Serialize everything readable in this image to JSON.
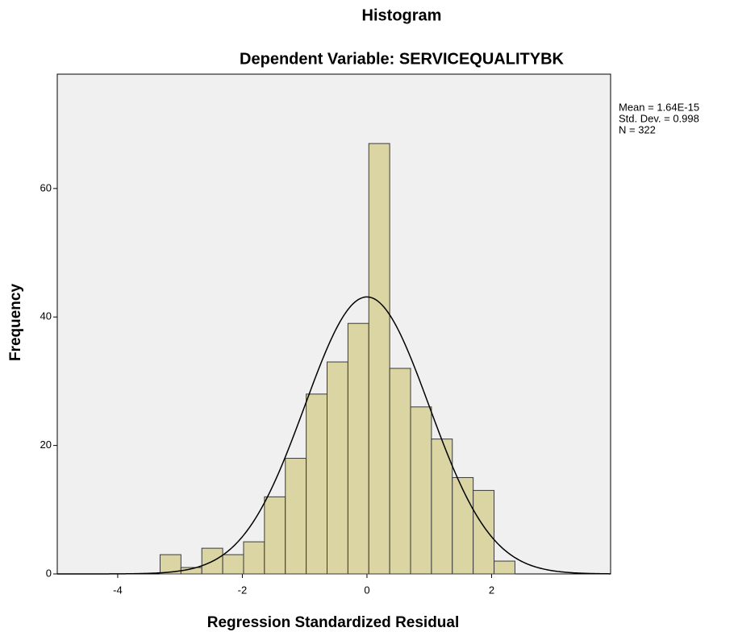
{
  "chart_data": {
    "type": "histogram",
    "title": "Histogram",
    "subtitle": "Dependent Variable: SERVICEQUALITYBK",
    "x_label": "Regression Standardized Residual",
    "y_label": "Frequency",
    "bins": [
      -3.32,
      -2.985,
      -2.65,
      -2.315,
      -1.98,
      -1.645,
      -1.31,
      -0.975,
      -0.64,
      -0.305,
      0.03,
      0.365,
      0.7,
      1.035,
      1.37,
      1.705,
      2.04,
      2.375
    ],
    "counts": [
      3,
      1,
      4,
      3,
      5,
      12,
      18,
      28,
      33,
      39,
      67,
      32,
      26,
      21,
      15,
      13,
      2
    ],
    "color": "#dbd5a4",
    "edge_color": "#3a3a3a",
    "background": "#f0f0f0",
    "xlim": [
      -4.97,
      3.91
    ],
    "ylim": [
      0,
      77.8
    ],
    "xticks": [
      -4,
      -2,
      0,
      2
    ],
    "yticks": [
      0,
      20,
      40,
      60
    ],
    "grid": false,
    "normal_curve": {
      "mean": {
        "value": 1.64e-15,
        "label": "Mean = 1.64E-15"
      },
      "std_dev": {
        "value": 0.998,
        "label": "Std. Dev. = 0.998"
      },
      "n": {
        "value": 322,
        "label": "N = 322"
      }
    }
  }
}
